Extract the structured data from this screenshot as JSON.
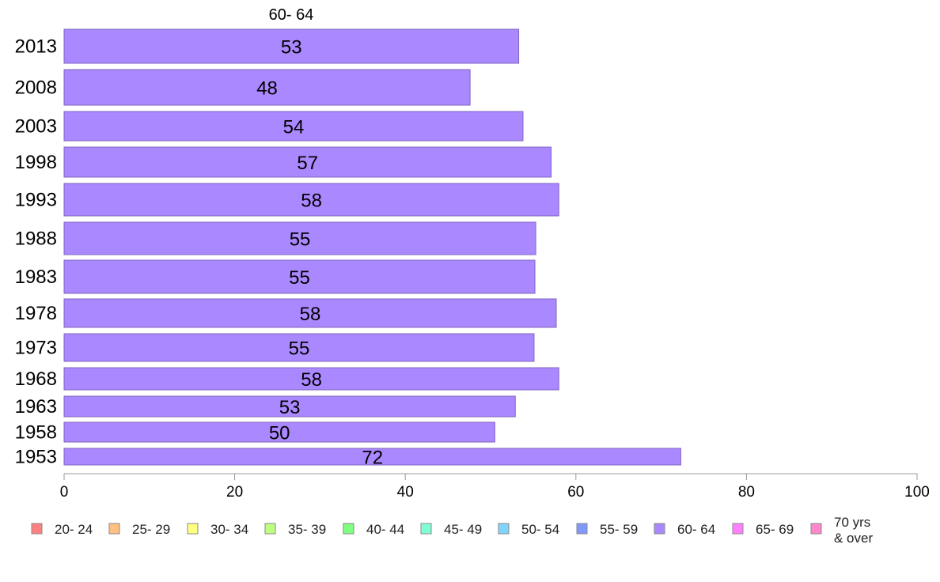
{
  "chart_data": {
    "type": "bar",
    "orientation": "horizontal",
    "series_title": "60- 64",
    "categories": [
      "2013",
      "2008",
      "2003",
      "1998",
      "1993",
      "1988",
      "1983",
      "1978",
      "1973",
      "1968",
      "1963",
      "1958",
      "1953"
    ],
    "values": [
      53.3,
      47.6,
      53.8,
      57.1,
      58.0,
      55.3,
      55.2,
      57.7,
      55.1,
      58.0,
      52.9,
      50.5,
      72.3
    ],
    "value_labels": [
      "53",
      "48",
      "54",
      "57",
      "58",
      "55",
      "55",
      "58",
      "55",
      "58",
      "53",
      "50",
      "72"
    ],
    "bar_color": "#aa88ff",
    "bar_border_color": "#7f66bf",
    "xlim": [
      0,
      100
    ],
    "xticks": [
      0,
      20,
      40,
      60,
      80,
      100
    ],
    "xtick_labels": [
      "0",
      "20",
      "40",
      "60",
      "80",
      "100"
    ],
    "grid": false,
    "legend_placement": "bottom",
    "legend": [
      {
        "label": "20- 24",
        "color": "#ff8080"
      },
      {
        "label": "25- 29",
        "color": "#ffc080"
      },
      {
        "label": "30- 34",
        "color": "#ffff80"
      },
      {
        "label": "35- 39",
        "color": "#bfff80"
      },
      {
        "label": "40- 44",
        "color": "#80ff80"
      },
      {
        "label": "45- 49",
        "color": "#80ffd5"
      },
      {
        "label": "50- 54",
        "color": "#80d5ff"
      },
      {
        "label": "55- 59",
        "color": "#8099ff"
      },
      {
        "label": "60- 64",
        "color": "#aa88ff"
      },
      {
        "label": "65- 69",
        "color": "#ff80ff"
      },
      {
        "label": "70 yrs\n& over",
        "color": "#ff88cc"
      }
    ]
  }
}
